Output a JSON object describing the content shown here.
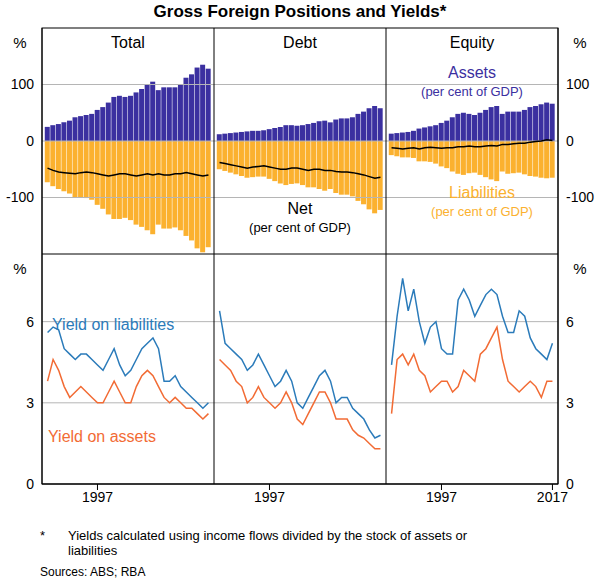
{
  "title": "Gross Foreign Positions and Yields*",
  "footnote": {
    "mark": "*",
    "text": "Yields calculated using income flows divided by the stock of assets or liabilities"
  },
  "source": "Sources: ABS; RBA",
  "chart_data": [
    {
      "type": "bar",
      "title": "Total",
      "ylabel": "%",
      "stacked": true,
      "grid": true,
      "tick_labels": "y",
      "x": [
        1988,
        1989,
        1990,
        1991,
        1992,
        1993,
        1994,
        1995,
        1996,
        1997,
        1998,
        1999,
        2000,
        2001,
        2002,
        2003,
        2004,
        2005,
        2006,
        2007,
        2008,
        2009,
        2010,
        2011,
        2012,
        2013,
        2014,
        2015,
        2016,
        2017
      ],
      "xlim": [
        1987,
        2018
      ],
      "xticks": [
        1997
      ],
      "ylim": [
        -200,
        200
      ],
      "yticks": [
        -100,
        0,
        100
      ],
      "series": [
        {
          "color": "#3b30a0",
          "values": [
            25,
            28,
            30,
            33,
            36,
            42,
            44,
            46,
            48,
            55,
            60,
            68,
            78,
            80,
            78,
            80,
            86,
            92,
            100,
            105,
            90,
            95,
            95,
            95,
            100,
            112,
            118,
            130,
            135,
            128
          ]
        },
        {
          "color": "#fbb12f",
          "values": [
            -73,
            -80,
            -85,
            -89,
            -93,
            -100,
            -100,
            -101,
            -104,
            -113,
            -120,
            -130,
            -138,
            -138,
            -136,
            -140,
            -148,
            -152,
            -158,
            -165,
            -148,
            -155,
            -155,
            -153,
            -158,
            -168,
            -176,
            -190,
            -197,
            -188
          ]
        },
        {
          "type": "line",
          "color": "#000000",
          "values": [
            -48,
            -52,
            -55,
            -56,
            -57,
            -58,
            -56,
            -55,
            -56,
            -58,
            -60,
            -62,
            -60,
            -58,
            -58,
            -60,
            -62,
            -60,
            -58,
            -60,
            -58,
            -60,
            -60,
            -58,
            -58,
            -56,
            -58,
            -60,
            -62,
            -60
          ]
        }
      ]
    },
    {
      "type": "bar",
      "title": "Debt",
      "stacked": true,
      "grid": true,
      "tick_labels": false,
      "x": [
        1988,
        1989,
        1990,
        1991,
        1992,
        1993,
        1994,
        1995,
        1996,
        1997,
        1998,
        1999,
        2000,
        2001,
        2002,
        2003,
        2004,
        2005,
        2006,
        2007,
        2008,
        2009,
        2010,
        2011,
        2012,
        2013,
        2014,
        2015,
        2016,
        2017
      ],
      "xlim": [
        1987,
        2018
      ],
      "xticks": [
        1997
      ],
      "ylim": [
        -200,
        200
      ],
      "yticks": [
        -100,
        0,
        100
      ],
      "annotations": [
        "(per cent of GDP)"
      ],
      "series": [
        {
          "color": "#3b30a0",
          "values": [
            12,
            13,
            14,
            15,
            16,
            17,
            18,
            18,
            19,
            21,
            23,
            25,
            28,
            28,
            27,
            28,
            30,
            32,
            35,
            36,
            33,
            38,
            40,
            40,
            42,
            48,
            52,
            58,
            62,
            58
          ]
        },
        {
          "color": "#fbb12f",
          "values": [
            -50,
            -53,
            -56,
            -59,
            -62,
            -65,
            -64,
            -63,
            -63,
            -67,
            -71,
            -75,
            -78,
            -76,
            -75,
            -78,
            -82,
            -82,
            -85,
            -88,
            -85,
            -92,
            -95,
            -95,
            -98,
            -106,
            -112,
            -121,
            -128,
            -122
          ]
        },
        {
          "type": "line",
          "name": "Net",
          "color": "#000000",
          "values": [
            -38,
            -40,
            -42,
            -44,
            -46,
            -48,
            -46,
            -45,
            -44,
            -46,
            -48,
            -50,
            -50,
            -48,
            -48,
            -50,
            -52,
            -50,
            -50,
            -52,
            -52,
            -54,
            -55,
            -55,
            -56,
            -58,
            -60,
            -63,
            -66,
            -64
          ]
        }
      ]
    },
    {
      "type": "bar",
      "title": "Equity",
      "ylabel": "%",
      "stacked": true,
      "grid": true,
      "tick_labels": "y",
      "x": [
        1988,
        1989,
        1990,
        1991,
        1992,
        1993,
        1994,
        1995,
        1996,
        1997,
        1998,
        1999,
        2000,
        2001,
        2002,
        2003,
        2004,
        2005,
        2006,
        2007,
        2008,
        2009,
        2010,
        2011,
        2012,
        2013,
        2014,
        2015,
        2016,
        2017
      ],
      "xlim": [
        1987,
        2018
      ],
      "xticks": [
        1997,
        2017
      ],
      "ylim": [
        -200,
        200
      ],
      "yticks": [
        -100,
        0,
        100
      ],
      "annotations": [
        "(per cent of GDP)",
        "(per cent of GDP)"
      ],
      "series": [
        {
          "name": "Assets",
          "color": "#3b30a0",
          "values": [
            13,
            14,
            15,
            16,
            18,
            22,
            24,
            26,
            28,
            32,
            36,
            42,
            48,
            50,
            48,
            46,
            50,
            55,
            60,
            62,
            48,
            52,
            52,
            52,
            55,
            60,
            62,
            65,
            68,
            66
          ]
        },
        {
          "name": "Liabilities",
          "color": "#fbb12f",
          "values": [
            -25,
            -27,
            -29,
            -29,
            -30,
            -36,
            -36,
            -37,
            -40,
            -45,
            -48,
            -54,
            -58,
            -60,
            -57,
            -56,
            -60,
            -64,
            -68,
            -71,
            -54,
            -58,
            -57,
            -56,
            -59,
            -62,
            -63,
            -65,
            -66,
            -65
          ]
        },
        {
          "type": "line",
          "color": "#000000",
          "values": [
            -12,
            -13,
            -14,
            -13,
            -12,
            -14,
            -12,
            -11,
            -12,
            -13,
            -12,
            -12,
            -10,
            -10,
            -9,
            -10,
            -10,
            -9,
            -8,
            -9,
            -6,
            -6,
            -5,
            -4,
            -4,
            -2,
            -1,
            0,
            2,
            1
          ]
        }
      ]
    },
    {
      "type": "line",
      "ylabel": "%",
      "grid": true,
      "tick_labels": true,
      "x": [
        1988,
        1989,
        1990,
        1991,
        1992,
        1993,
        1994,
        1995,
        1996,
        1997,
        1998,
        1999,
        2000,
        2001,
        2002,
        2003,
        2004,
        2005,
        2006,
        2007,
        2008,
        2009,
        2010,
        2011,
        2012,
        2013,
        2014,
        2015,
        2016,
        2017
      ],
      "xlim": [
        1987,
        2018
      ],
      "xticks": [
        1997
      ],
      "ylim": [
        0,
        8.5
      ],
      "yticks": [
        0,
        3,
        6
      ],
      "series": [
        {
          "name": "Yield on liabilities",
          "color": "#2b7bba",
          "values": [
            5.6,
            5.8,
            5.7,
            5.0,
            4.8,
            4.6,
            4.8,
            4.8,
            4.6,
            4.4,
            4.2,
            4.6,
            5.0,
            4.4,
            4.0,
            4.2,
            4.6,
            5.0,
            5.2,
            5.4,
            5.0,
            3.8,
            3.8,
            4.0,
            3.6,
            3.4,
            3.2,
            3.0,
            2.8,
            3.0
          ]
        },
        {
          "name": "Yield on assets",
          "color": "#f26b34",
          "values": [
            3.8,
            4.6,
            4.2,
            3.6,
            3.2,
            3.4,
            3.6,
            3.4,
            3.2,
            3.0,
            3.0,
            3.4,
            3.8,
            3.4,
            3.0,
            3.0,
            3.6,
            4.0,
            4.2,
            4.0,
            3.6,
            3.2,
            3.0,
            3.2,
            3.0,
            2.8,
            2.8,
            2.6,
            2.4,
            2.6
          ]
        }
      ]
    },
    {
      "type": "line",
      "grid": true,
      "tick_labels": "x",
      "x": [
        1988,
        1989,
        1990,
        1991,
        1992,
        1993,
        1994,
        1995,
        1996,
        1997,
        1998,
        1999,
        2000,
        2001,
        2002,
        2003,
        2004,
        2005,
        2006,
        2007,
        2008,
        2009,
        2010,
        2011,
        2012,
        2013,
        2014,
        2015,
        2016,
        2017
      ],
      "xlim": [
        1987,
        2018
      ],
      "xticks": [
        1997
      ],
      "ylim": [
        0,
        8.5
      ],
      "yticks": [
        0,
        3,
        6
      ],
      "series": [
        {
          "color": "#2b7bba",
          "values": [
            6.4,
            5.2,
            5.0,
            4.8,
            4.6,
            4.2,
            4.4,
            4.8,
            4.4,
            4.0,
            3.6,
            3.8,
            4.2,
            3.8,
            3.0,
            2.8,
            3.2,
            3.6,
            4.0,
            4.2,
            3.8,
            3.0,
            3.2,
            3.2,
            2.8,
            2.6,
            2.4,
            2.0,
            1.7,
            1.8
          ]
        },
        {
          "color": "#f26b34",
          "values": [
            4.6,
            4.4,
            4.2,
            3.8,
            3.6,
            3.0,
            3.2,
            3.6,
            3.2,
            3.0,
            2.8,
            3.0,
            3.4,
            3.0,
            2.4,
            2.2,
            2.6,
            3.0,
            3.4,
            3.4,
            3.0,
            2.4,
            2.4,
            2.4,
            2.0,
            1.8,
            1.7,
            1.5,
            1.3,
            1.3
          ]
        }
      ]
    },
    {
      "type": "line",
      "ylabel": "%",
      "grid": true,
      "tick_labels": true,
      "x": [
        1988,
        1989,
        1990,
        1991,
        1992,
        1993,
        1994,
        1995,
        1996,
        1997,
        1998,
        1999,
        2000,
        2001,
        2002,
        2003,
        2004,
        2005,
        2006,
        2007,
        2008,
        2009,
        2010,
        2011,
        2012,
        2013,
        2014,
        2015,
        2016,
        2017
      ],
      "xlim": [
        1987,
        2018
      ],
      "xticks": [
        1997,
        2017
      ],
      "ylim": [
        0,
        8.5
      ],
      "yticks": [
        0,
        3,
        6
      ],
      "series": [
        {
          "color": "#2b7bba",
          "values": [
            4.4,
            6.2,
            7.6,
            6.4,
            7.2,
            6.0,
            5.2,
            5.8,
            6.0,
            5.0,
            4.8,
            4.8,
            6.8,
            7.2,
            6.8,
            6.2,
            6.6,
            7.0,
            7.2,
            7.0,
            6.2,
            5.6,
            5.6,
            6.4,
            6.2,
            5.4,
            5.0,
            4.8,
            4.6,
            5.2
          ]
        },
        {
          "color": "#f26b34",
          "values": [
            2.6,
            4.6,
            4.8,
            4.4,
            4.8,
            4.2,
            4.0,
            3.4,
            3.6,
            3.8,
            3.8,
            3.4,
            3.6,
            4.2,
            4.0,
            3.8,
            4.8,
            5.0,
            5.4,
            5.8,
            4.6,
            3.8,
            3.6,
            3.4,
            3.6,
            3.8,
            3.6,
            3.2,
            3.8,
            3.8
          ]
        }
      ]
    }
  ]
}
